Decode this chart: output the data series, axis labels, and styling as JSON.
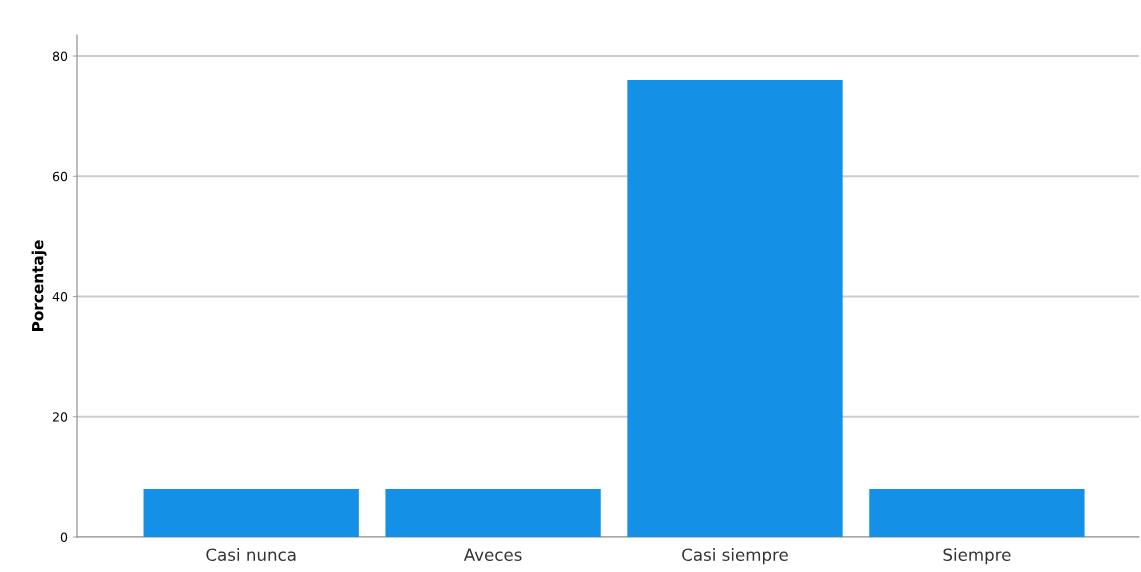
{
  "chart_data": {
    "type": "bar",
    "ylabel": "Porcentaje",
    "categories": [
      "Casi nunca",
      "Aveces",
      "Casi siempre",
      "Siempre"
    ],
    "values": [
      8,
      8,
      76,
      8
    ],
    "color": "#1490e6",
    "ylim": [
      0,
      83.5
    ],
    "yticks": [
      0,
      20,
      40,
      60,
      80
    ],
    "grid": "y"
  }
}
